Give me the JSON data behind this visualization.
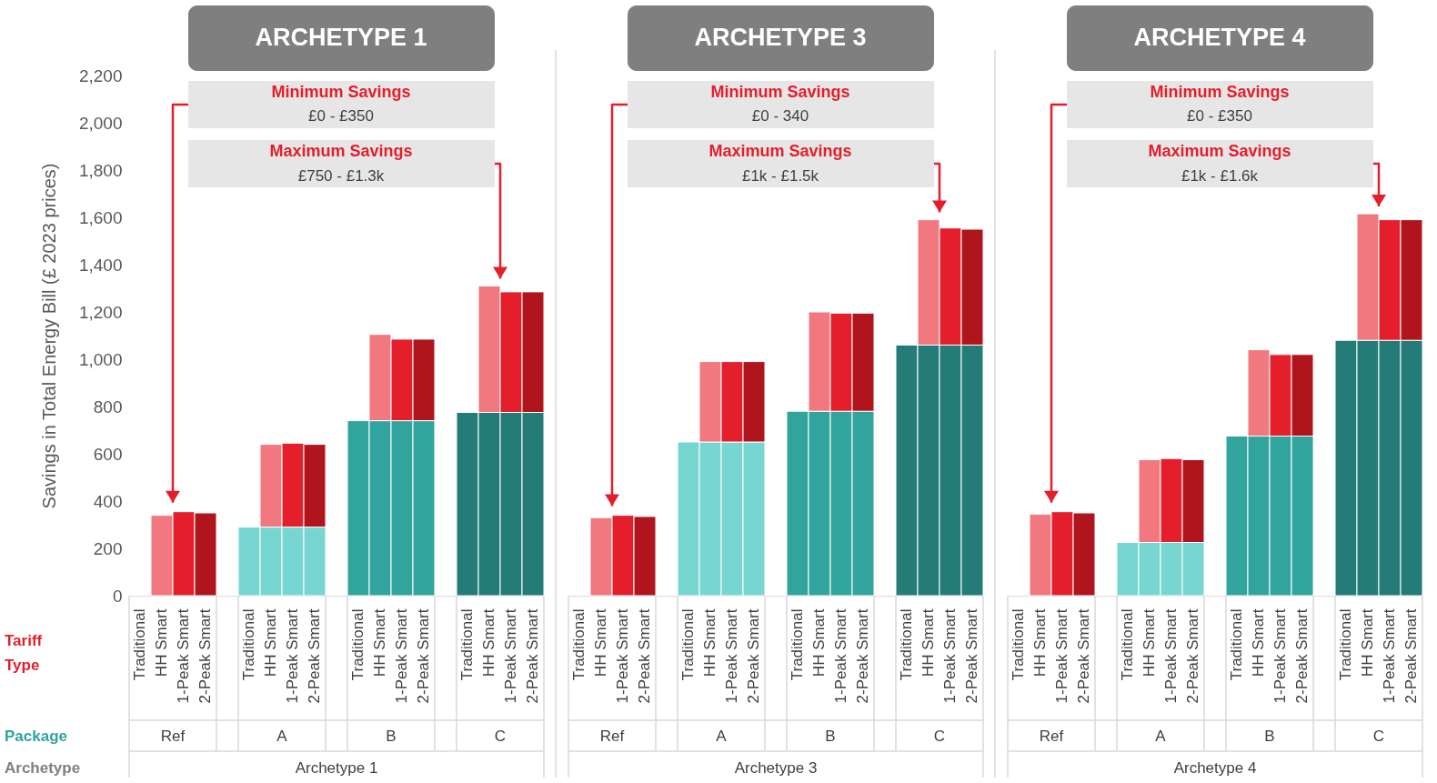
{
  "chart_data": [
    {
      "type": "bar",
      "title": "ARCHETYPE 1",
      "ylabel": "Savings in Total Energy Bill (£ 2023 prices)",
      "stacked": true,
      "categories": [
        "Traditional",
        "HH Smart",
        "1-Peak Smart",
        "2-Peak Smart",
        "Traditional",
        "HH Smart",
        "1-Peak Smart",
        "2-Peak Smart",
        "Traditional",
        "HH Smart",
        "1-Peak Smart",
        "2-Peak Smart",
        "Traditional",
        "HH Smart",
        "1-Peak Smart",
        "2-Peak Smart"
      ],
      "series": [
        {
          "colors": [
            null,
            null,
            null,
            null,
            "#78d6d2",
            "#78d6d2",
            "#78d6d2",
            "#78d6d2",
            "#32a49e",
            "#32a49e",
            "#32a49e",
            "#32a49e",
            "#257b78",
            "#257b78",
            "#257b78",
            "#257b78"
          ],
          "values": [
            null,
            null,
            null,
            null,
            290,
            290,
            290,
            290,
            740,
            740,
            740,
            740,
            775,
            775,
            775,
            775
          ]
        },
        {
          "colors": [
            null,
            "#f1787e",
            "#e41e2b",
            "#b0151d",
            null,
            "#f1787e",
            "#e41e2b",
            "#b0151d",
            null,
            "#f1787e",
            "#e41e2b",
            "#b0151d",
            null,
            "#f1787e",
            "#e41e2b",
            "#b0151d"
          ],
          "values": [
            null,
            340,
            355,
            350,
            null,
            350,
            355,
            350,
            null,
            365,
            345,
            345,
            null,
            535,
            510,
            510
          ]
        }
      ],
      "ylim": [
        0,
        2200
      ],
      "yticks": [
        0,
        200,
        400,
        600,
        800,
        {
          "value": 1000,
          "label": "1,000"
        },
        {
          "value": 1200,
          "label": "1,200"
        },
        {
          "value": 1400,
          "label": "1,400"
        },
        {
          "value": 1600,
          "label": "1,600"
        },
        {
          "value": 1800,
          "label": "1,800"
        },
        {
          "value": 2000,
          "label": "2,000"
        },
        {
          "value": 2200,
          "label": "2,200"
        }
      ],
      "annotations": [
        "Minimum Savings",
        "£0 - £350",
        "Maximum Savings",
        "£750 - £1.3k",
        "Ref",
        "A",
        "B",
        "C",
        "Archetype 1",
        "Tariff Type",
        "Package",
        "Archetype"
      ]
    },
    {
      "type": "bar",
      "title": "ARCHETYPE 3",
      "stacked": true,
      "tick_labels": "x",
      "categories": [
        "Traditional",
        "HH Smart",
        "1-Peak Smart",
        "2-Peak Smart",
        "Traditional",
        "HH Smart",
        "1-Peak Smart",
        "2-Peak Smart",
        "Traditional",
        "HH Smart",
        "1-Peak Smart",
        "2-Peak Smart",
        "Traditional",
        "HH Smart",
        "1-Peak Smart",
        "2-Peak Smart"
      ],
      "series": [
        {
          "colors": [
            null,
            null,
            null,
            null,
            "#78d6d2",
            "#78d6d2",
            "#78d6d2",
            "#78d6d2",
            "#32a49e",
            "#32a49e",
            "#32a49e",
            "#32a49e",
            "#257b78",
            "#257b78",
            "#257b78",
            "#257b78"
          ],
          "values": [
            null,
            null,
            null,
            null,
            650,
            650,
            650,
            650,
            780,
            780,
            780,
            780,
            1060,
            1060,
            1060,
            1060
          ]
        },
        {
          "colors": [
            null,
            "#f1787e",
            "#e41e2b",
            "#b0151d",
            null,
            "#f1787e",
            "#e41e2b",
            "#b0151d",
            null,
            "#f1787e",
            "#e41e2b",
            "#b0151d",
            null,
            "#f1787e",
            "#e41e2b",
            "#b0151d"
          ],
          "values": [
            null,
            330,
            340,
            335,
            null,
            340,
            340,
            340,
            null,
            420,
            415,
            415,
            null,
            530,
            495,
            490
          ]
        }
      ],
      "ylim": [
        0,
        2200
      ],
      "annotations": [
        "Minimum Savings",
        "£0 - 340",
        "Maximum Savings",
        "£1k - £1.5k",
        "Ref",
        "A",
        "B",
        "C",
        "Archetype 3"
      ]
    },
    {
      "type": "bar",
      "title": "ARCHETYPE 4",
      "stacked": true,
      "tick_labels": "x",
      "categories": [
        "Traditional",
        "HH Smart",
        "1-Peak Smart",
        "2-Peak Smart",
        "Traditional",
        "HH Smart",
        "1-Peak Smart",
        "2-Peak Smart",
        "Traditional",
        "HH Smart",
        "1-Peak Smart",
        "2-Peak Smart",
        "Traditional",
        "HH Smart",
        "1-Peak Smart",
        "2-Peak Smart"
      ],
      "series": [
        {
          "colors": [
            null,
            null,
            null,
            null,
            "#78d6d2",
            "#78d6d2",
            "#78d6d2",
            "#78d6d2",
            "#32a49e",
            "#32a49e",
            "#32a49e",
            "#32a49e",
            "#257b78",
            "#257b78",
            "#257b78",
            "#257b78"
          ],
          "values": [
            null,
            null,
            null,
            null,
            225,
            225,
            225,
            225,
            675,
            675,
            675,
            675,
            1080,
            1080,
            1080,
            1080
          ]
        },
        {
          "colors": [
            null,
            "#f1787e",
            "#e41e2b",
            "#b0151d",
            null,
            "#f1787e",
            "#e41e2b",
            "#b0151d",
            null,
            "#f1787e",
            "#e41e2b",
            "#b0151d",
            null,
            "#f1787e",
            "#e41e2b",
            "#b0151d"
          ],
          "values": [
            null,
            345,
            355,
            350,
            null,
            350,
            355,
            350,
            null,
            365,
            345,
            345,
            null,
            535,
            510,
            510
          ]
        }
      ],
      "ylim": [
        0,
        2200
      ],
      "annotations": [
        "Minimum Savings",
        "£0 - £350",
        "Maximum Savings",
        "£1k - £1.6k",
        "Ref",
        "A",
        "B",
        "C",
        "Archetype 4"
      ]
    }
  ]
}
